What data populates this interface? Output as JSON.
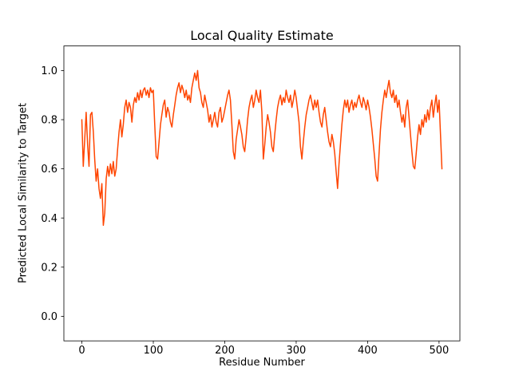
{
  "figure": {
    "background": "#ffffff"
  },
  "chart_data": {
    "type": "line",
    "title": "Local Quality Estimate",
    "xlabel": "Residue Number",
    "ylabel": "Predicted Local Similarity to Target",
    "xlim": [
      -25.2,
      529.2
    ],
    "ylim": [
      -0.1,
      1.1
    ],
    "xticks": [
      0,
      100,
      200,
      300,
      400,
      500
    ],
    "xtick_labels": [
      "0",
      "100",
      "200",
      "300",
      "400",
      "500"
    ],
    "yticks": [
      0.0,
      0.2,
      0.4,
      0.6,
      0.8,
      1.0
    ],
    "ytick_labels": [
      "0.0",
      "0.2",
      "0.4",
      "0.6",
      "0.8",
      "1.0"
    ],
    "grid": false,
    "legend": null,
    "line_color": "#FF4500",
    "line_width": 1.5,
    "axis_color": "#000000",
    "series": [
      {
        "name": "predicted-local-similarity",
        "points": [
          [
            0,
            0.8
          ],
          [
            2,
            0.61
          ],
          [
            4,
            0.72
          ],
          [
            6,
            0.83
          ],
          [
            8,
            0.7
          ],
          [
            10,
            0.61
          ],
          [
            12,
            0.82
          ],
          [
            14,
            0.83
          ],
          [
            16,
            0.75
          ],
          [
            18,
            0.64
          ],
          [
            20,
            0.55
          ],
          [
            22,
            0.6
          ],
          [
            24,
            0.52
          ],
          [
            26,
            0.48
          ],
          [
            28,
            0.54
          ],
          [
            30,
            0.37
          ],
          [
            32,
            0.42
          ],
          [
            34,
            0.56
          ],
          [
            36,
            0.61
          ],
          [
            38,
            0.57
          ],
          [
            40,
            0.62
          ],
          [
            42,
            0.58
          ],
          [
            44,
            0.63
          ],
          [
            46,
            0.57
          ],
          [
            48,
            0.6
          ],
          [
            50,
            0.68
          ],
          [
            52,
            0.75
          ],
          [
            54,
            0.8
          ],
          [
            56,
            0.73
          ],
          [
            58,
            0.78
          ],
          [
            60,
            0.85
          ],
          [
            62,
            0.88
          ],
          [
            64,
            0.83
          ],
          [
            66,
            0.87
          ],
          [
            68,
            0.85
          ],
          [
            70,
            0.79
          ],
          [
            72,
            0.86
          ],
          [
            74,
            0.89
          ],
          [
            76,
            0.87
          ],
          [
            78,
            0.91
          ],
          [
            80,
            0.88
          ],
          [
            82,
            0.92
          ],
          [
            84,
            0.89
          ],
          [
            86,
            0.92
          ],
          [
            88,
            0.93
          ],
          [
            90,
            0.9
          ],
          [
            92,
            0.92
          ],
          [
            94,
            0.89
          ],
          [
            96,
            0.93
          ],
          [
            98,
            0.91
          ],
          [
            100,
            0.92
          ],
          [
            102,
            0.78
          ],
          [
            104,
            0.65
          ],
          [
            106,
            0.64
          ],
          [
            108,
            0.71
          ],
          [
            110,
            0.78
          ],
          [
            112,
            0.82
          ],
          [
            114,
            0.86
          ],
          [
            116,
            0.88
          ],
          [
            118,
            0.81
          ],
          [
            120,
            0.85
          ],
          [
            122,
            0.83
          ],
          [
            124,
            0.79
          ],
          [
            126,
            0.77
          ],
          [
            128,
            0.82
          ],
          [
            130,
            0.86
          ],
          [
            132,
            0.9
          ],
          [
            134,
            0.93
          ],
          [
            136,
            0.95
          ],
          [
            138,
            0.91
          ],
          [
            140,
            0.94
          ],
          [
            142,
            0.92
          ],
          [
            144,
            0.89
          ],
          [
            146,
            0.92
          ],
          [
            148,
            0.88
          ],
          [
            150,
            0.9
          ],
          [
            152,
            0.87
          ],
          [
            154,
            0.93
          ],
          [
            156,
            0.96
          ],
          [
            158,
            0.99
          ],
          [
            160,
            0.96
          ],
          [
            162,
            1.0
          ],
          [
            164,
            0.93
          ],
          [
            166,
            0.91
          ],
          [
            168,
            0.87
          ],
          [
            170,
            0.85
          ],
          [
            172,
            0.9
          ],
          [
            174,
            0.87
          ],
          [
            176,
            0.84
          ],
          [
            178,
            0.79
          ],
          [
            180,
            0.82
          ],
          [
            182,
            0.77
          ],
          [
            184,
            0.8
          ],
          [
            186,
            0.83
          ],
          [
            188,
            0.79
          ],
          [
            190,
            0.77
          ],
          [
            192,
            0.83
          ],
          [
            194,
            0.85
          ],
          [
            196,
            0.79
          ],
          [
            198,
            0.81
          ],
          [
            200,
            0.84
          ],
          [
            202,
            0.87
          ],
          [
            204,
            0.9
          ],
          [
            206,
            0.92
          ],
          [
            208,
            0.88
          ],
          [
            210,
            0.78
          ],
          [
            212,
            0.67
          ],
          [
            214,
            0.64
          ],
          [
            216,
            0.72
          ],
          [
            218,
            0.76
          ],
          [
            220,
            0.8
          ],
          [
            222,
            0.77
          ],
          [
            224,
            0.74
          ],
          [
            226,
            0.69
          ],
          [
            228,
            0.67
          ],
          [
            230,
            0.73
          ],
          [
            232,
            0.8
          ],
          [
            234,
            0.85
          ],
          [
            236,
            0.88
          ],
          [
            238,
            0.9
          ],
          [
            240,
            0.85
          ],
          [
            242,
            0.88
          ],
          [
            244,
            0.92
          ],
          [
            246,
            0.89
          ],
          [
            248,
            0.87
          ],
          [
            250,
            0.92
          ],
          [
            252,
            0.83
          ],
          [
            254,
            0.64
          ],
          [
            256,
            0.7
          ],
          [
            258,
            0.77
          ],
          [
            260,
            0.82
          ],
          [
            262,
            0.79
          ],
          [
            264,
            0.75
          ],
          [
            266,
            0.69
          ],
          [
            268,
            0.67
          ],
          [
            270,
            0.74
          ],
          [
            272,
            0.8
          ],
          [
            274,
            0.85
          ],
          [
            276,
            0.88
          ],
          [
            278,
            0.9
          ],
          [
            280,
            0.86
          ],
          [
            282,
            0.89
          ],
          [
            284,
            0.87
          ],
          [
            286,
            0.92
          ],
          [
            288,
            0.89
          ],
          [
            290,
            0.87
          ],
          [
            292,
            0.9
          ],
          [
            294,
            0.85
          ],
          [
            296,
            0.88
          ],
          [
            298,
            0.92
          ],
          [
            300,
            0.89
          ],
          [
            302,
            0.84
          ],
          [
            304,
            0.79
          ],
          [
            306,
            0.69
          ],
          [
            308,
            0.64
          ],
          [
            310,
            0.71
          ],
          [
            312,
            0.77
          ],
          [
            314,
            0.82
          ],
          [
            316,
            0.85
          ],
          [
            318,
            0.88
          ],
          [
            320,
            0.9
          ],
          [
            322,
            0.87
          ],
          [
            324,
            0.84
          ],
          [
            326,
            0.88
          ],
          [
            328,
            0.85
          ],
          [
            330,
            0.88
          ],
          [
            332,
            0.83
          ],
          [
            334,
            0.79
          ],
          [
            336,
            0.77
          ],
          [
            338,
            0.82
          ],
          [
            340,
            0.85
          ],
          [
            342,
            0.8
          ],
          [
            344,
            0.75
          ],
          [
            346,
            0.71
          ],
          [
            348,
            0.69
          ],
          [
            350,
            0.74
          ],
          [
            352,
            0.71
          ],
          [
            354,
            0.66
          ],
          [
            356,
            0.59
          ],
          [
            358,
            0.52
          ],
          [
            360,
            0.62
          ],
          [
            362,
            0.7
          ],
          [
            364,
            0.78
          ],
          [
            366,
            0.84
          ],
          [
            368,
            0.88
          ],
          [
            370,
            0.85
          ],
          [
            372,
            0.88
          ],
          [
            374,
            0.83
          ],
          [
            376,
            0.86
          ],
          [
            378,
            0.88
          ],
          [
            380,
            0.84
          ],
          [
            382,
            0.87
          ],
          [
            384,
            0.85
          ],
          [
            386,
            0.88
          ],
          [
            388,
            0.9
          ],
          [
            390,
            0.87
          ],
          [
            392,
            0.85
          ],
          [
            394,
            0.89
          ],
          [
            396,
            0.87
          ],
          [
            398,
            0.84
          ],
          [
            400,
            0.88
          ],
          [
            402,
            0.85
          ],
          [
            404,
            0.81
          ],
          [
            406,
            0.76
          ],
          [
            408,
            0.7
          ],
          [
            410,
            0.64
          ],
          [
            412,
            0.57
          ],
          [
            414,
            0.55
          ],
          [
            416,
            0.66
          ],
          [
            418,
            0.76
          ],
          [
            420,
            0.83
          ],
          [
            422,
            0.88
          ],
          [
            424,
            0.92
          ],
          [
            426,
            0.89
          ],
          [
            428,
            0.93
          ],
          [
            430,
            0.96
          ],
          [
            432,
            0.91
          ],
          [
            434,
            0.89
          ],
          [
            436,
            0.92
          ],
          [
            438,
            0.87
          ],
          [
            440,
            0.9
          ],
          [
            442,
            0.85
          ],
          [
            444,
            0.88
          ],
          [
            446,
            0.83
          ],
          [
            448,
            0.79
          ],
          [
            450,
            0.82
          ],
          [
            452,
            0.77
          ],
          [
            454,
            0.85
          ],
          [
            456,
            0.88
          ],
          [
            458,
            0.81
          ],
          [
            460,
            0.74
          ],
          [
            462,
            0.67
          ],
          [
            464,
            0.61
          ],
          [
            466,
            0.6
          ],
          [
            468,
            0.66
          ],
          [
            470,
            0.73
          ],
          [
            472,
            0.78
          ],
          [
            474,
            0.74
          ],
          [
            476,
            0.8
          ],
          [
            478,
            0.77
          ],
          [
            480,
            0.82
          ],
          [
            482,
            0.79
          ],
          [
            484,
            0.84
          ],
          [
            486,
            0.8
          ],
          [
            488,
            0.85
          ],
          [
            490,
            0.88
          ],
          [
            492,
            0.81
          ],
          [
            494,
            0.86
          ],
          [
            496,
            0.9
          ],
          [
            498,
            0.83
          ],
          [
            500,
            0.88
          ],
          [
            502,
            0.74
          ],
          [
            504,
            0.6
          ]
        ]
      }
    ]
  }
}
